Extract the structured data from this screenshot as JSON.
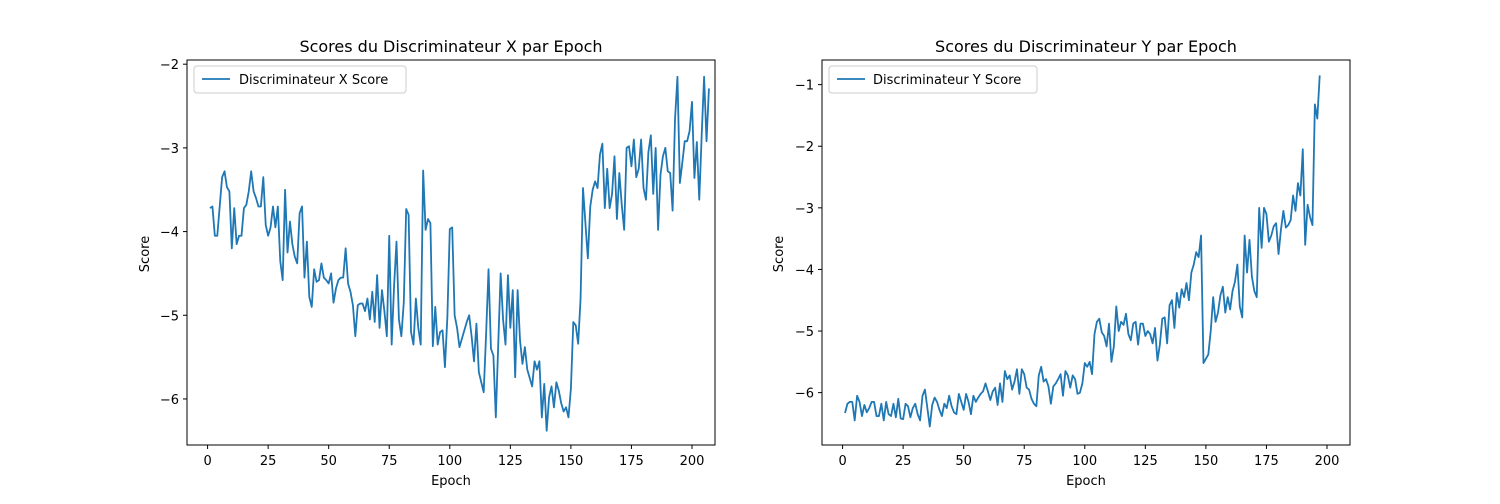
{
  "chart_data": [
    {
      "type": "line",
      "title": "Scores du Discriminateur X par Epoch",
      "xlabel": "Epoch",
      "ylabel": "Score",
      "xlim": [
        -8.5,
        209.5
      ],
      "ylim": [
        -6.55,
        -1.95
      ],
      "xticks": [
        0,
        25,
        50,
        75,
        100,
        125,
        150,
        175,
        200
      ],
      "yticks": [
        -6,
        -5,
        -4,
        -3,
        -2
      ],
      "legend": "top-left",
      "grid": false,
      "color": "#1f77b4",
      "series": [
        {
          "name": "Discriminateur X Score",
          "x_start": 1,
          "x_step": 1,
          "values": [
            -3.72,
            -3.7,
            -4.05,
            -4.05,
            -3.7,
            -3.35,
            -3.28,
            -3.47,
            -3.52,
            -4.2,
            -3.72,
            -4.15,
            -4.05,
            -4.05,
            -3.72,
            -3.68,
            -3.52,
            -3.28,
            -3.52,
            -3.6,
            -3.7,
            -3.7,
            -3.35,
            -3.92,
            -4.05,
            -3.95,
            -3.7,
            -3.95,
            -3.7,
            -4.35,
            -4.58,
            -3.5,
            -4.25,
            -3.88,
            -4.15,
            -4.3,
            -4.38,
            -3.78,
            -3.7,
            -4.55,
            -4.12,
            -4.78,
            -4.9,
            -4.45,
            -4.6,
            -4.58,
            -4.38,
            -4.55,
            -4.58,
            -4.62,
            -4.5,
            -4.85,
            -4.68,
            -4.58,
            -4.55,
            -4.55,
            -4.2,
            -4.62,
            -4.72,
            -4.88,
            -5.25,
            -4.88,
            -4.86,
            -4.86,
            -4.95,
            -4.8,
            -5.05,
            -4.72,
            -5.08,
            -4.52,
            -5.15,
            -4.7,
            -4.95,
            -5.25,
            -4.05,
            -5.35,
            -4.65,
            -4.12,
            -5.05,
            -5.25,
            -4.85,
            -3.73,
            -3.8,
            -5.2,
            -5.35,
            -4.8,
            -5.15,
            -5.35,
            -3.27,
            -3.98,
            -3.85,
            -3.9,
            -5.37,
            -4.9,
            -5.35,
            -5.2,
            -5.18,
            -5.62,
            -5.02,
            -3.97,
            -3.95,
            -5.0,
            -5.15,
            -5.38,
            -5.28,
            -5.18,
            -5.08,
            -5.0,
            -5.25,
            -5.55,
            -5.1,
            -5.68,
            -5.8,
            -5.92,
            -5.22,
            -4.45,
            -5.4,
            -5.48,
            -6.22,
            -5.35,
            -4.5,
            -5.05,
            -5.35,
            -4.52,
            -5.15,
            -4.7,
            -5.74,
            -4.7,
            -5.3,
            -5.58,
            -5.38,
            -5.65,
            -5.75,
            -5.85,
            -5.55,
            -5.65,
            -5.55,
            -6.22,
            -5.82,
            -6.38,
            -5.98,
            -5.85,
            -6.1,
            -5.8,
            -5.9,
            -6.05,
            -6.15,
            -6.1,
            -6.22,
            -5.88,
            -5.08,
            -5.12,
            -5.34,
            -4.8,
            -3.48,
            -3.9,
            -4.32,
            -3.7,
            -3.5,
            -3.4,
            -3.48,
            -3.08,
            -2.95,
            -3.72,
            -3.25,
            -3.72,
            -3.55,
            -3.1,
            -3.85,
            -3.3,
            -3.68,
            -3.98,
            -3.0,
            -2.98,
            -3.22,
            -2.9,
            -3.35,
            -3.25,
            -2.9,
            -3.48,
            -3.62,
            -3.05,
            -2.85,
            -3.55,
            -3.0,
            -3.98,
            -3.32,
            -3.1,
            -3.0,
            -3.28,
            -3.3,
            -3.75,
            -2.65,
            -2.15,
            -3.42,
            -3.18,
            -2.92,
            -2.92,
            -2.8,
            -2.45,
            -3.36,
            -2.93,
            -3.62,
            -2.85,
            -2.15,
            -2.92,
            -2.29
          ]
        }
      ]
    },
    {
      "type": "line",
      "title": "Scores du Discriminateur Y par Epoch",
      "xlabel": "Epoch",
      "ylabel": "Score",
      "xlim": [
        -8.5,
        209.5
      ],
      "ylim": [
        -6.85,
        -0.6
      ],
      "xticks": [
        0,
        25,
        50,
        75,
        100,
        125,
        150,
        175,
        200
      ],
      "yticks": [
        -6,
        -5,
        -4,
        -3,
        -2,
        -1
      ],
      "legend": "top-left",
      "grid": false,
      "color": "#1f77b4",
      "series": [
        {
          "name": "Discriminateur Y Score",
          "x_start": 1,
          "x_step": 1,
          "values": [
            -6.33,
            -6.18,
            -6.15,
            -6.15,
            -6.45,
            -6.05,
            -6.15,
            -6.38,
            -6.2,
            -6.32,
            -6.25,
            -6.15,
            -6.15,
            -6.38,
            -6.38,
            -6.18,
            -6.45,
            -6.15,
            -6.35,
            -6.38,
            -6.18,
            -6.4,
            -6.1,
            -6.42,
            -6.43,
            -6.18,
            -6.22,
            -6.4,
            -6.25,
            -6.18,
            -6.35,
            -6.45,
            -6.05,
            -5.95,
            -6.25,
            -6.55,
            -6.2,
            -6.08,
            -6.15,
            -6.28,
            -6.38,
            -6.18,
            -6.25,
            -6.05,
            -6.22,
            -6.32,
            -6.35,
            -6.02,
            -6.15,
            -6.28,
            -6.02,
            -6.15,
            -6.35,
            -6.05,
            -6.15,
            -6.08,
            -6.02,
            -5.98,
            -5.85,
            -5.98,
            -6.12,
            -5.98,
            -5.92,
            -6.2,
            -5.85,
            -6.15,
            -5.65,
            -5.78,
            -5.72,
            -5.95,
            -5.82,
            -5.62,
            -6.02,
            -5.62,
            -5.7,
            -5.92,
            -5.95,
            -6.1,
            -6.18,
            -6.22,
            -5.72,
            -5.58,
            -5.82,
            -5.78,
            -5.9,
            -6.18,
            -5.9,
            -5.85,
            -5.78,
            -5.7,
            -6.05,
            -5.65,
            -5.72,
            -5.92,
            -5.72,
            -5.78,
            -6.02,
            -6.0,
            -5.85,
            -5.52,
            -5.58,
            -5.5,
            -5.7,
            -5.05,
            -4.85,
            -4.8,
            -5.02,
            -5.08,
            -5.25,
            -4.88,
            -5.5,
            -5.25,
            -4.6,
            -5.0,
            -4.85,
            -4.9,
            -4.72,
            -5.05,
            -5.15,
            -4.88,
            -4.85,
            -5.22,
            -4.88,
            -4.88,
            -5.08,
            -5.0,
            -5.05,
            -5.2,
            -4.95,
            -5.48,
            -5.22,
            -4.8,
            -4.78,
            -5.2,
            -4.58,
            -4.5,
            -4.95,
            -4.38,
            -4.62,
            -4.32,
            -4.45,
            -4.22,
            -4.5,
            -4.05,
            -3.92,
            -3.72,
            -3.8,
            -3.45,
            -5.52,
            -5.45,
            -5.38,
            -5.0,
            -4.45,
            -4.85,
            -4.7,
            -4.42,
            -4.28,
            -4.7,
            -4.45,
            -4.65,
            -4.35,
            -4.2,
            -3.92,
            -4.6,
            -4.78,
            -3.45,
            -4.05,
            -3.52,
            -4.12,
            -4.35,
            -4.45,
            -3.0,
            -3.65,
            -3.0,
            -3.1,
            -3.55,
            -3.45,
            -3.3,
            -3.25,
            -3.75,
            -3.35,
            -3.05,
            -3.32,
            -3.28,
            -3.2,
            -2.8,
            -3.05,
            -2.6,
            -2.8,
            -2.05,
            -3.6,
            -2.95,
            -3.15,
            -3.28,
            -1.32,
            -1.55,
            -0.85
          ]
        }
      ]
    }
  ]
}
